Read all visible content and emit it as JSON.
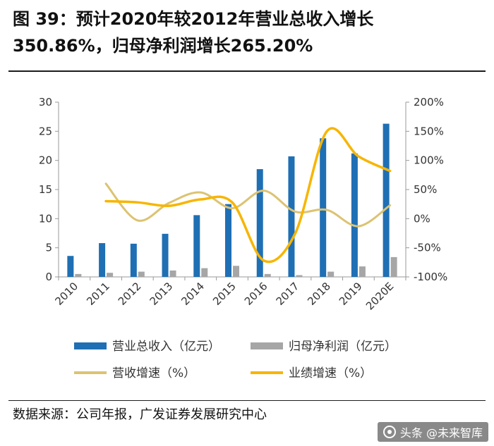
{
  "figure": {
    "title_line1": "图 39：预计2020年较2012年营业总收入增长",
    "title_line2": "350.86%，归母净利润增长265.20%",
    "source": "数据来源：公司年报，广发证券发展研究中心"
  },
  "watermark": {
    "text": "头条 @未来智库"
  },
  "chart_data": {
    "type": "bar",
    "title": "预计2020年较2012年营业总收入增长350.86%，归母净利润增长265.20%",
    "categories": [
      "2010",
      "2011",
      "2012",
      "2013",
      "2014",
      "2015",
      "2016",
      "2017",
      "2018",
      "2019",
      "2020E"
    ],
    "left_axis": {
      "ylim": [
        0,
        30
      ],
      "ticks": [
        "0",
        "5",
        "10",
        "15",
        "20",
        "25",
        "30"
      ],
      "unit": "亿元"
    },
    "right_axis": {
      "ylim": [
        -100,
        200
      ],
      "ticks": [
        "-100%",
        "-50%",
        "0%",
        "50%",
        "100%",
        "150%",
        "200%"
      ],
      "unit": "%"
    },
    "series": [
      {
        "name": "营业总收入（亿元）",
        "type": "bar",
        "axis": "left",
        "color": "#1f6fb4",
        "values": [
          3.6,
          5.8,
          5.7,
          7.4,
          10.6,
          12.5,
          18.5,
          20.7,
          23.8,
          21.2,
          26.3
        ]
      },
      {
        "name": "归母净利润（亿元）",
        "type": "bar",
        "axis": "left",
        "color": "#a6a6a6",
        "values": [
          0.5,
          0.7,
          0.9,
          1.1,
          1.5,
          1.9,
          0.5,
          0.3,
          0.9,
          1.8,
          3.4
        ]
      },
      {
        "name": "营收增速（%）",
        "type": "line",
        "axis": "right",
        "color": "#dcc372",
        "values": [
          null,
          60,
          -3,
          27,
          45,
          18,
          48,
          12,
          15,
          -13,
          23
        ]
      },
      {
        "name": "业绩增速（%）",
        "type": "line",
        "axis": "right",
        "color": "#f7b500",
        "values": [
          null,
          30,
          28,
          22,
          33,
          28,
          -72,
          -25,
          150,
          107,
          82
        ]
      }
    ],
    "legend": [
      {
        "label": "营业总收入（亿元）",
        "kind": "bar",
        "color": "#1f6fb4"
      },
      {
        "label": "归母净利润（亿元）",
        "kind": "bar",
        "color": "#a6a6a6"
      },
      {
        "label": "营收增速（%）",
        "kind": "line",
        "color": "#dcc372"
      },
      {
        "label": "业绩增速（%）",
        "kind": "line",
        "color": "#f7b500"
      }
    ],
    "legend_position": "bottom"
  }
}
